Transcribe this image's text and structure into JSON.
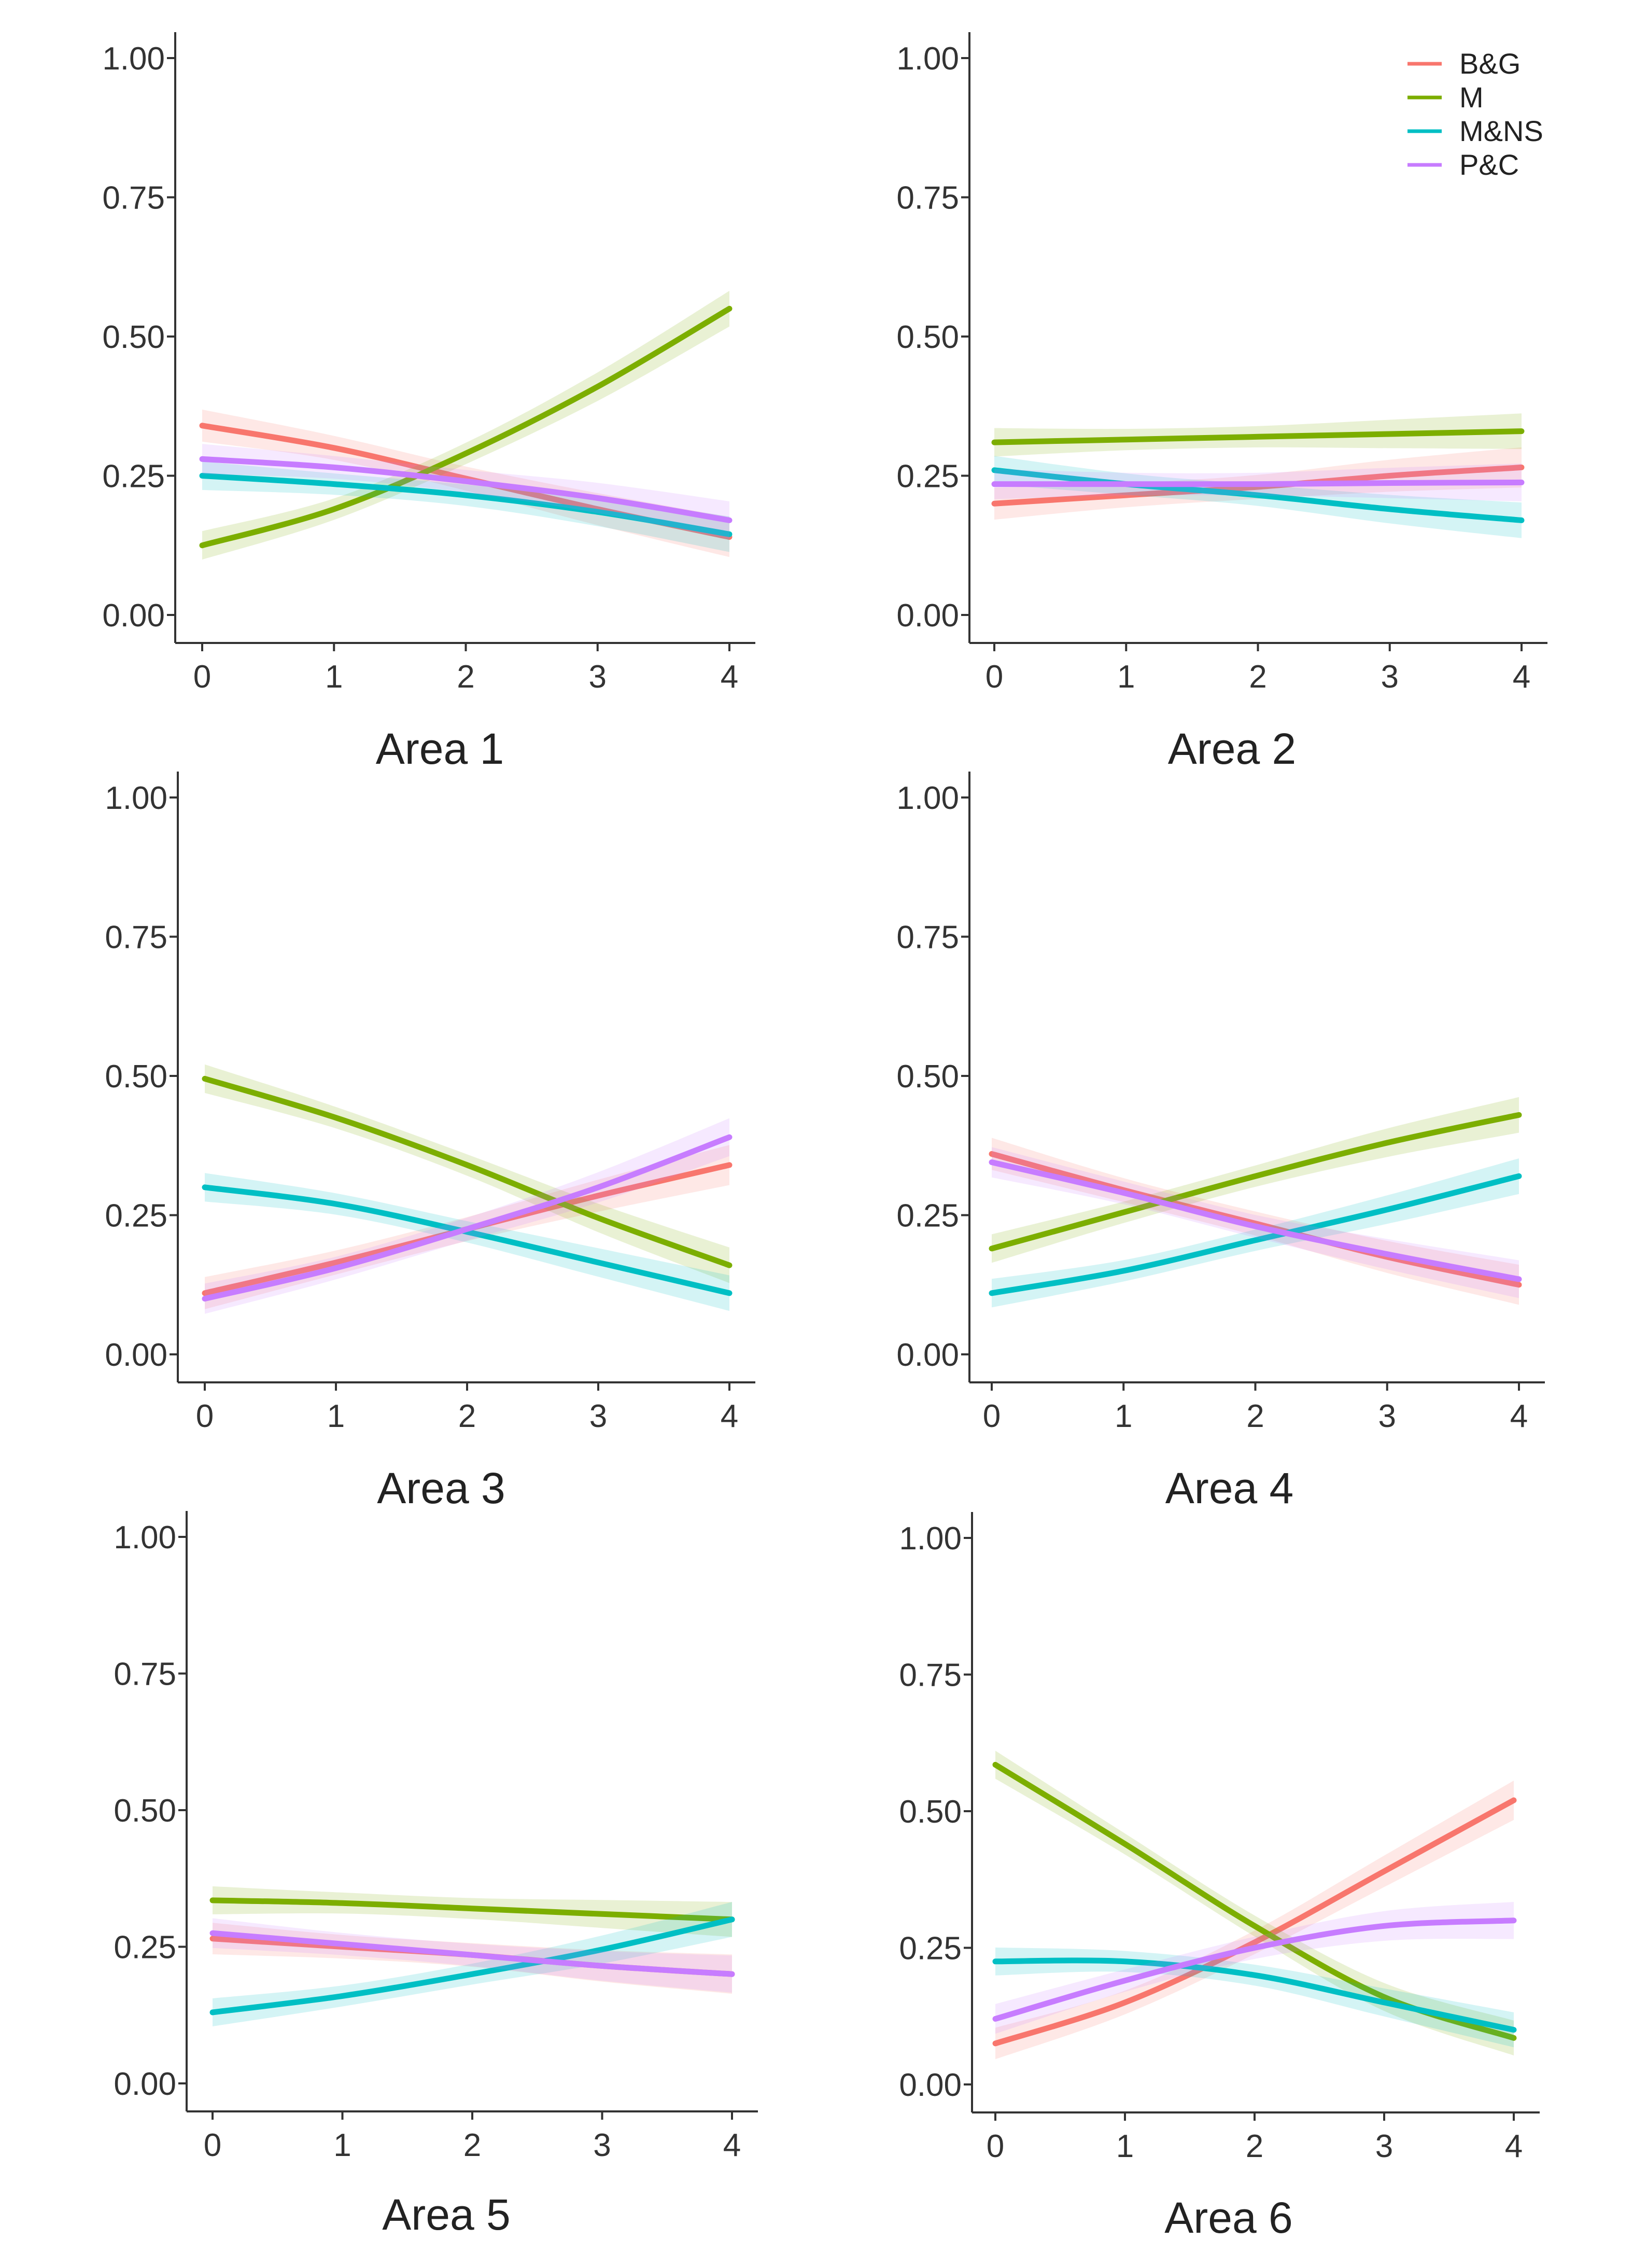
{
  "chart_data": [
    {
      "type": "line",
      "title": "Area 1",
      "xlabel": "Area 1",
      "ylabel": "",
      "x": [
        0,
        1,
        2,
        3,
        4
      ],
      "xlim": [
        0,
        4
      ],
      "ylim": [
        0,
        1
      ],
      "yticks": [
        "0.00",
        "0.25",
        "0.50",
        "0.75",
        "1.00"
      ],
      "xticks": [
        "0",
        "1",
        "2",
        "3",
        "4"
      ],
      "grid": false,
      "series": [
        {
          "name": "B&G",
          "values": [
            0.34,
            0.3,
            0.245,
            0.19,
            0.14
          ]
        },
        {
          "name": "M",
          "values": [
            0.125,
            0.19,
            0.29,
            0.41,
            0.55
          ]
        },
        {
          "name": "M&NS",
          "values": [
            0.25,
            0.235,
            0.215,
            0.185,
            0.145
          ]
        },
        {
          "name": "P&C",
          "values": [
            0.28,
            0.265,
            0.24,
            0.21,
            0.17
          ]
        }
      ]
    },
    {
      "type": "line",
      "title": "Area 2",
      "xlabel": "Area 2",
      "ylabel": "",
      "x": [
        0,
        1,
        2,
        3,
        4
      ],
      "xlim": [
        0,
        4
      ],
      "ylim": [
        0,
        1
      ],
      "yticks": [
        "0.00",
        "0.25",
        "0.50",
        "0.75",
        "1.00"
      ],
      "xticks": [
        "0",
        "1",
        "2",
        "3",
        "4"
      ],
      "grid": false,
      "series": [
        {
          "name": "B&G",
          "values": [
            0.2,
            0.215,
            0.23,
            0.25,
            0.265
          ]
        },
        {
          "name": "M",
          "values": [
            0.31,
            0.315,
            0.32,
            0.325,
            0.33
          ]
        },
        {
          "name": "M&NS",
          "values": [
            0.26,
            0.235,
            0.215,
            0.19,
            0.17
          ]
        },
        {
          "name": "P&C",
          "values": [
            0.235,
            0.235,
            0.235,
            0.237,
            0.238
          ]
        }
      ]
    },
    {
      "type": "line",
      "title": "Area 3",
      "xlabel": "Area 3",
      "ylabel": "",
      "x": [
        0,
        1,
        2,
        3,
        4
      ],
      "xlim": [
        0,
        4
      ],
      "ylim": [
        0,
        1
      ],
      "yticks": [
        "0.00",
        "0.25",
        "0.50",
        "0.75",
        "1.00"
      ],
      "xticks": [
        "0",
        "1",
        "2",
        "3",
        "4"
      ],
      "grid": false,
      "series": [
        {
          "name": "B&G",
          "values": [
            0.11,
            0.165,
            0.225,
            0.285,
            0.34
          ]
        },
        {
          "name": "M",
          "values": [
            0.495,
            0.425,
            0.34,
            0.245,
            0.16
          ]
        },
        {
          "name": "M&NS",
          "values": [
            0.3,
            0.27,
            0.22,
            0.165,
            0.11
          ]
        },
        {
          "name": "P&C",
          "values": [
            0.1,
            0.155,
            0.225,
            0.3,
            0.39
          ]
        }
      ]
    },
    {
      "type": "line",
      "title": "Area 4",
      "xlabel": "Area 4",
      "ylabel": "",
      "x": [
        0,
        1,
        2,
        3,
        4
      ],
      "xlim": [
        0,
        4
      ],
      "ylim": [
        0,
        1
      ],
      "yticks": [
        "0.00",
        "0.25",
        "0.50",
        "0.75",
        "1.00"
      ],
      "xticks": [
        "0",
        "1",
        "2",
        "3",
        "4"
      ],
      "grid": false,
      "series": [
        {
          "name": "B&G",
          "values": [
            0.36,
            0.295,
            0.235,
            0.175,
            0.125
          ]
        },
        {
          "name": "M",
          "values": [
            0.19,
            0.255,
            0.32,
            0.38,
            0.43
          ]
        },
        {
          "name": "M&NS",
          "values": [
            0.11,
            0.15,
            0.205,
            0.26,
            0.32
          ]
        },
        {
          "name": "P&C",
          "values": [
            0.345,
            0.29,
            0.23,
            0.18,
            0.135
          ]
        }
      ]
    },
    {
      "type": "line",
      "title": "Area 5",
      "xlabel": "Area 5",
      "ylabel": "",
      "x": [
        0,
        1,
        2,
        3,
        4
      ],
      "xlim": [
        0,
        4
      ],
      "ylim": [
        0,
        1
      ],
      "yticks": [
        "0.00",
        "0.25",
        "0.50",
        "0.75",
        "1.00"
      ],
      "xticks": [
        "0",
        "1",
        "2",
        "3",
        "4"
      ],
      "grid": false,
      "series": [
        {
          "name": "B&G",
          "values": [
            0.265,
            0.25,
            0.235,
            0.215,
            0.2
          ]
        },
        {
          "name": "M",
          "values": [
            0.335,
            0.33,
            0.32,
            0.31,
            0.3
          ]
        },
        {
          "name": "M&NS",
          "values": [
            0.13,
            0.16,
            0.2,
            0.245,
            0.3
          ]
        },
        {
          "name": "P&C",
          "values": [
            0.275,
            0.255,
            0.235,
            0.215,
            0.2
          ]
        }
      ]
    },
    {
      "type": "line",
      "title": "Area 6",
      "xlabel": "Area 6",
      "ylabel": "",
      "x": [
        0,
        1,
        2,
        3,
        4
      ],
      "xlim": [
        0,
        4
      ],
      "ylim": [
        0,
        1
      ],
      "yticks": [
        "0.00",
        "0.25",
        "0.50",
        "0.75",
        "1.00"
      ],
      "xticks": [
        "0",
        "1",
        "2",
        "3",
        "4"
      ],
      "grid": false,
      "series": [
        {
          "name": "B&G",
          "values": [
            0.075,
            0.15,
            0.26,
            0.39,
            0.52
          ]
        },
        {
          "name": "M",
          "values": [
            0.585,
            0.44,
            0.29,
            0.16,
            0.085
          ]
        },
        {
          "name": "M&NS",
          "values": [
            0.225,
            0.225,
            0.2,
            0.15,
            0.1
          ]
        },
        {
          "name": "P&C",
          "values": [
            0.12,
            0.19,
            0.25,
            0.29,
            0.3
          ]
        }
      ]
    }
  ],
  "legend": {
    "position": "top-right",
    "items": [
      {
        "name": "B&G",
        "color": "#F8766D"
      },
      {
        "name": "M",
        "color": "#7CAE00"
      },
      {
        "name": "M&NS",
        "color": "#00BFC4"
      },
      {
        "name": "P&C",
        "color": "#C77CFF"
      }
    ]
  },
  "colors": {
    "B&G": "#F8766D",
    "M": "#7CAE00",
    "M&NS": "#00BFC4",
    "P&C": "#C77CFF",
    "axis": "#333333"
  }
}
